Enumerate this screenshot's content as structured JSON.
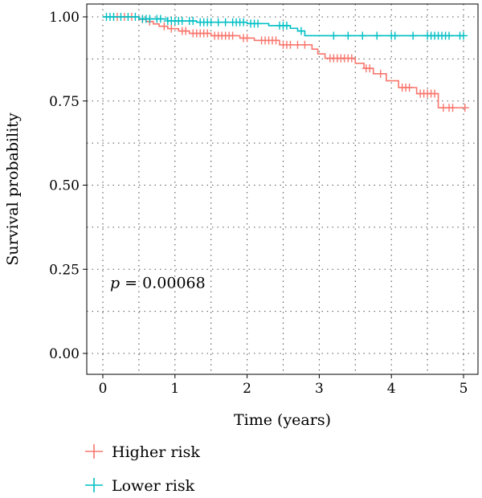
{
  "chart_data": {
    "type": "line",
    "subtype": "kaplan-meier step curve",
    "xlabel": "Time (years)",
    "ylabel": "Survival probability",
    "xlim": [
      0,
      5
    ],
    "ylim": [
      0,
      1
    ],
    "xticks": [
      "0",
      "1",
      "2",
      "3",
      "4",
      "5"
    ],
    "yticks": [
      "0.00",
      "0.25",
      "0.50",
      "0.75",
      "1.00"
    ],
    "grid": "dotted, major and minor",
    "annotation": {
      "prefix": "p",
      "value": " = 0.00068"
    },
    "legend_position": "bottom-left",
    "series": [
      {
        "name": "Higher risk",
        "color": "#f8766d",
        "steps": [
          [
            0,
            1.0
          ],
          [
            0.5,
            0.993
          ],
          [
            0.6,
            0.986
          ],
          [
            0.7,
            0.979
          ],
          [
            0.78,
            0.972
          ],
          [
            0.9,
            0.965
          ],
          [
            1.05,
            0.958
          ],
          [
            1.2,
            0.951
          ],
          [
            1.5,
            0.944
          ],
          [
            1.9,
            0.937
          ],
          [
            2.1,
            0.93
          ],
          [
            2.45,
            0.917
          ],
          [
            2.9,
            0.904
          ],
          [
            2.98,
            0.89
          ],
          [
            3.08,
            0.877
          ],
          [
            3.5,
            0.862
          ],
          [
            3.62,
            0.847
          ],
          [
            3.75,
            0.831
          ],
          [
            3.93,
            0.81
          ],
          [
            4.1,
            0.79
          ],
          [
            4.35,
            0.772
          ],
          [
            4.65,
            0.73
          ],
          [
            5.0,
            0.73
          ]
        ],
        "censor_x": [
          0.2,
          0.3,
          0.4,
          0.55,
          0.65,
          0.85,
          0.95,
          1.1,
          1.15,
          1.25,
          1.3,
          1.35,
          1.4,
          1.45,
          1.55,
          1.6,
          1.65,
          1.7,
          1.75,
          1.8,
          1.95,
          2.0,
          2.2,
          2.25,
          2.3,
          2.35,
          2.4,
          2.5,
          2.55,
          2.6,
          2.7,
          2.8,
          3.15,
          3.2,
          3.25,
          3.3,
          3.35,
          3.4,
          3.45,
          3.65,
          3.7,
          3.85,
          4.15,
          4.2,
          4.25,
          4.4,
          4.45,
          4.5,
          4.55,
          4.6,
          4.72,
          4.8,
          4.85,
          5.02
        ]
      },
      {
        "name": "Lower risk",
        "color": "#00bfc4",
        "steps": [
          [
            0,
            1.0
          ],
          [
            0.5,
            0.994
          ],
          [
            0.9,
            0.988
          ],
          [
            1.3,
            0.984
          ],
          [
            2.0,
            0.98
          ],
          [
            2.3,
            0.974
          ],
          [
            2.6,
            0.966
          ],
          [
            2.7,
            0.958
          ],
          [
            2.8,
            0.944
          ],
          [
            5.0,
            0.944
          ]
        ],
        "censor_x": [
          0.05,
          0.1,
          0.15,
          0.25,
          0.35,
          0.45,
          0.55,
          0.6,
          0.65,
          0.75,
          0.8,
          0.9,
          0.95,
          1.0,
          1.05,
          1.1,
          1.2,
          1.25,
          1.35,
          1.4,
          1.45,
          1.5,
          1.6,
          1.7,
          1.8,
          1.85,
          1.9,
          1.95,
          2.05,
          2.1,
          2.15,
          2.45,
          2.5,
          2.55,
          2.75,
          3.2,
          3.4,
          3.6,
          3.8,
          4.0,
          4.05,
          4.3,
          4.5,
          4.55,
          4.6,
          4.65,
          4.7,
          4.75,
          4.8,
          4.95,
          5.0
        ]
      }
    ]
  }
}
